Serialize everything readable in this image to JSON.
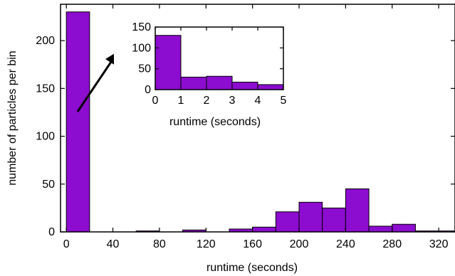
{
  "chart_data": [
    {
      "type": "bar",
      "role": "main",
      "xlabel": "runtime (seconds)",
      "ylabel": "number of particles per bin",
      "bar_color": "#8c0ccf",
      "bins": [
        {
          "x0": 0,
          "x1": 20,
          "value": 230
        },
        {
          "x0": 20,
          "x1": 40,
          "value": 0
        },
        {
          "x0": 40,
          "x1": 60,
          "value": 0
        },
        {
          "x0": 60,
          "x1": 80,
          "value": 1
        },
        {
          "x0": 80,
          "x1": 100,
          "value": 0
        },
        {
          "x0": 100,
          "x1": 120,
          "value": 2
        },
        {
          "x0": 120,
          "x1": 140,
          "value": 0
        },
        {
          "x0": 140,
          "x1": 160,
          "value": 3
        },
        {
          "x0": 160,
          "x1": 180,
          "value": 5
        },
        {
          "x0": 180,
          "x1": 200,
          "value": 21
        },
        {
          "x0": 200,
          "x1": 220,
          "value": 31
        },
        {
          "x0": 220,
          "x1": 240,
          "value": 25
        },
        {
          "x0": 240,
          "x1": 260,
          "value": 45
        },
        {
          "x0": 260,
          "x1": 280,
          "value": 6
        },
        {
          "x0": 280,
          "x1": 300,
          "value": 8
        },
        {
          "x0": 300,
          "x1": 320,
          "value": 1
        },
        {
          "x0": 320,
          "x1": 340,
          "value": 1
        }
      ],
      "xlim": [
        -5,
        334
      ],
      "ylim": [
        0,
        238
      ],
      "xticks": [
        0,
        40,
        80,
        120,
        160,
        200,
        240,
        280,
        320
      ],
      "xtick_labels": [
        "0",
        "40",
        "80",
        "120",
        "160",
        "200",
        "240",
        "280",
        "320"
      ],
      "yticks": [
        0,
        50,
        100,
        150,
        200
      ],
      "ytick_labels": [
        "0",
        "50",
        "100",
        "150",
        "200"
      ]
    },
    {
      "type": "bar",
      "role": "inset",
      "xlabel": "runtime (seconds)",
      "ylabel": "",
      "bar_color": "#8c0ccf",
      "bins": [
        {
          "x0": 0,
          "x1": 1,
          "value": 130
        },
        {
          "x0": 1,
          "x1": 2,
          "value": 30
        },
        {
          "x0": 2,
          "x1": 3,
          "value": 32
        },
        {
          "x0": 3,
          "x1": 4,
          "value": 18
        },
        {
          "x0": 4,
          "x1": 5,
          "value": 12
        }
      ],
      "xlim": [
        0,
        5
      ],
      "ylim": [
        0,
        150
      ],
      "xticks": [
        0,
        1,
        2,
        3,
        4,
        5
      ],
      "xtick_labels": [
        "0",
        "1",
        "2",
        "3",
        "4",
        "5"
      ],
      "yticks": [
        0,
        50,
        100,
        150
      ],
      "ytick_labels": [
        "0",
        "50",
        "100",
        "150"
      ]
    }
  ]
}
